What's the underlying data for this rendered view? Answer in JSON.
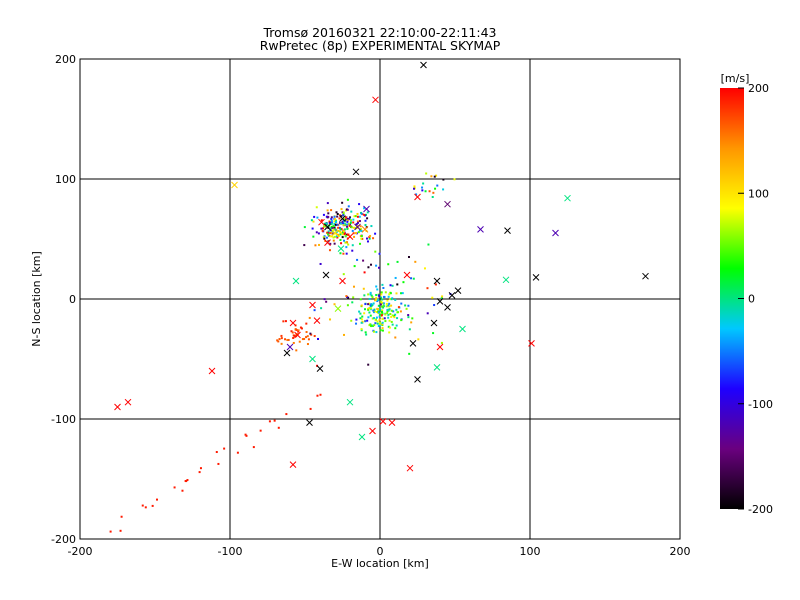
{
  "chart_data": {
    "type": "scatter",
    "title": "Tromsø 20160321 22:10:00-22:11:43",
    "subtitle": "RwPretec (8p) EXPERIMENTAL SKYMAP",
    "xlabel": "E-W location [km]",
    "ylabel": "N-S location [km]",
    "xlim": [
      -200,
      200
    ],
    "ylim": [
      -200,
      200
    ],
    "xticks": [
      "-200",
      "-100",
      "0",
      "100",
      "200"
    ],
    "yticks": [
      "-200",
      "-100",
      "0",
      "100",
      "200"
    ],
    "grid": true,
    "colorbar": {
      "label": "[m/s]",
      "min": -200,
      "max": 200,
      "ticks": [
        "200",
        "100",
        "0",
        "-100",
        "-200"
      ],
      "colors": [
        "#000000",
        "#6a007f",
        "#1e00ff",
        "#00c8ff",
        "#00ff00",
        "#ffff00",
        "#ff9600",
        "#ff0000"
      ]
    },
    "cross_points": [
      {
        "x": 29,
        "y": 195,
        "v": -200
      },
      {
        "x": -3,
        "y": 166,
        "v": 200
      },
      {
        "x": -16,
        "y": 106,
        "v": -200
      },
      {
        "x": -97,
        "y": 95,
        "v": 110
      },
      {
        "x": 125,
        "y": 84,
        "v": 0
      },
      {
        "x": 25,
        "y": 85,
        "v": 200
      },
      {
        "x": 45,
        "y": 79,
        "v": -150
      },
      {
        "x": 67,
        "y": 58,
        "v": -120
      },
      {
        "x": 85,
        "y": 57,
        "v": -200
      },
      {
        "x": 117,
        "y": 55,
        "v": -120
      },
      {
        "x": -9,
        "y": 75,
        "v": -120
      },
      {
        "x": -39,
        "y": 64,
        "v": 200
      },
      {
        "x": -35,
        "y": 60,
        "v": -200
      },
      {
        "x": -30,
        "y": 55,
        "v": 100
      },
      {
        "x": -25,
        "y": 67,
        "v": -200
      },
      {
        "x": -20,
        "y": 52,
        "v": 200
      },
      {
        "x": -15,
        "y": 60,
        "v": -150
      },
      {
        "x": -10,
        "y": 58,
        "v": 150
      },
      {
        "x": -35,
        "y": 47,
        "v": 200
      },
      {
        "x": -26,
        "y": 42,
        "v": 0
      },
      {
        "x": -56,
        "y": 15,
        "v": 0
      },
      {
        "x": -36,
        "y": 20,
        "v": -200
      },
      {
        "x": -25,
        "y": 15,
        "v": 200
      },
      {
        "x": 18,
        "y": 20,
        "v": 200
      },
      {
        "x": 38,
        "y": 15,
        "v": -200
      },
      {
        "x": 52,
        "y": 7,
        "v": -200
      },
      {
        "x": 84,
        "y": 16,
        "v": 0
      },
      {
        "x": 104,
        "y": 18,
        "v": -200
      },
      {
        "x": 177,
        "y": 19,
        "v": -200
      },
      {
        "x": 40,
        "y": -2,
        "v": -200
      },
      {
        "x": 45,
        "y": -7,
        "v": -200
      },
      {
        "x": 48,
        "y": 3,
        "v": -200
      },
      {
        "x": 36,
        "y": -20,
        "v": -200
      },
      {
        "x": 55,
        "y": -25,
        "v": 0
      },
      {
        "x": -45,
        "y": -5,
        "v": 200
      },
      {
        "x": -58,
        "y": -20,
        "v": 200
      },
      {
        "x": -42,
        "y": -18,
        "v": 200
      },
      {
        "x": -28,
        "y": -8,
        "v": 60
      },
      {
        "x": -55,
        "y": -30,
        "v": 200
      },
      {
        "x": -60,
        "y": -40,
        "v": -120
      },
      {
        "x": -62,
        "y": -45,
        "v": -200
      },
      {
        "x": -45,
        "y": -50,
        "v": 0
      },
      {
        "x": 40,
        "y": -40,
        "v": 200
      },
      {
        "x": 22,
        "y": -37,
        "v": -200
      },
      {
        "x": 101,
        "y": -37,
        "v": 200
      },
      {
        "x": -112,
        "y": -60,
        "v": 200
      },
      {
        "x": -40,
        "y": -58,
        "v": -200
      },
      {
        "x": 38,
        "y": -57,
        "v": 0
      },
      {
        "x": 25,
        "y": -67,
        "v": -200
      },
      {
        "x": -175,
        "y": -90,
        "v": 200
      },
      {
        "x": -168,
        "y": -86,
        "v": 200
      },
      {
        "x": -20,
        "y": -86,
        "v": 0
      },
      {
        "x": -47,
        "y": -103,
        "v": -200
      },
      {
        "x": 2,
        "y": -102,
        "v": 200
      },
      {
        "x": 8,
        "y": -103,
        "v": 200
      },
      {
        "x": -5,
        "y": -110,
        "v": 200
      },
      {
        "x": -12,
        "y": -115,
        "v": 0
      },
      {
        "x": -58,
        "y": -138,
        "v": 200
      },
      {
        "x": 20,
        "y": -141,
        "v": 200
      }
    ]
  }
}
